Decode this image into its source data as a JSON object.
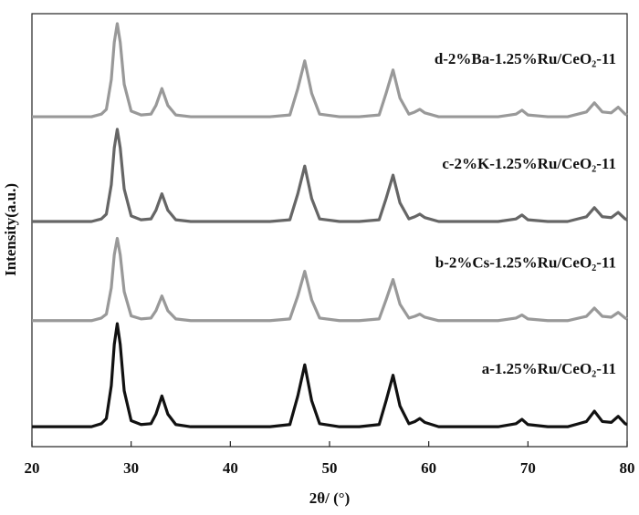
{
  "chart_data": {
    "type": "line",
    "xlabel": "2θ/ (°)",
    "ylabel": "Intensity(a.u.)",
    "xlim": [
      20,
      80
    ],
    "xticks": [
      20,
      30,
      40,
      50,
      60,
      70,
      80
    ],
    "ylim": [
      0,
      100
    ],
    "x": [
      20,
      22,
      24,
      26,
      27,
      27.5,
      28,
      28.3,
      28.6,
      28.9,
      29.3,
      30,
      31,
      32,
      32.5,
      33.1,
      33.7,
      34.5,
      36,
      38,
      40,
      42,
      44,
      46,
      46.8,
      47.5,
      48.2,
      49,
      51,
      53,
      55,
      55.7,
      56.4,
      57.1,
      58,
      58.6,
      59.1,
      59.6,
      61,
      63,
      65,
      67,
      68.8,
      69.4,
      70,
      72,
      74,
      75.9,
      76.7,
      77.5,
      78.4,
      79.1,
      79.8,
      80
    ],
    "series": [
      {
        "name": "a-1.25%Ru/CeO₂-11",
        "color": "#111111",
        "values": [
          4.6,
          4.6,
          4.6,
          4.6,
          5.3,
          6.5,
          14.1,
          23.6,
          28.4,
          23.6,
          12.9,
          6.0,
          5.1,
          5.3,
          7.5,
          11.7,
          7.5,
          5.1,
          4.6,
          4.6,
          4.6,
          4.6,
          4.6,
          5.1,
          11.7,
          18.9,
          10.6,
          5.3,
          4.6,
          4.6,
          5.1,
          10.6,
          16.5,
          9.4,
          5.3,
          5.8,
          6.5,
          5.6,
          4.6,
          4.6,
          4.6,
          4.6,
          5.3,
          6.3,
          5.1,
          4.6,
          4.6,
          5.8,
          8.2,
          5.8,
          5.6,
          7.0,
          5.3,
          5.1
        ]
      },
      {
        "name": "b-2%Cs-1.25%Ru/CeO₂-11",
        "color": "#999999",
        "values": [
          29.1,
          29.1,
          29.1,
          29.1,
          29.7,
          30.6,
          36.7,
          44.3,
          48.1,
          44.3,
          35.8,
          30.2,
          29.5,
          29.7,
          31.4,
          34.8,
          31.4,
          29.5,
          29.1,
          29.1,
          29.1,
          29.1,
          29.1,
          29.5,
          34.8,
          40.5,
          33.9,
          29.7,
          29.1,
          29.1,
          29.5,
          33.9,
          38.6,
          32.9,
          29.7,
          30.1,
          30.6,
          29.9,
          29.1,
          29.1,
          29.1,
          29.1,
          29.7,
          30.4,
          29.5,
          29.1,
          29.1,
          30.1,
          32.0,
          30.1,
          29.9,
          31.0,
          29.7,
          29.5
        ]
      },
      {
        "name": "c-2%K-1.25%Ru/CeO₂-11",
        "color": "#666666",
        "values": [
          52,
          52,
          52,
          52,
          52.6,
          53.7,
          60.5,
          69.0,
          73.3,
          69.0,
          59.5,
          53.3,
          52.4,
          52.6,
          54.6,
          58.4,
          54.6,
          52.4,
          52,
          52,
          52,
          52,
          52,
          52.4,
          58.4,
          64.8,
          57.3,
          52.6,
          52,
          52,
          52.4,
          57.3,
          62.7,
          56.3,
          52.6,
          53.1,
          53.7,
          52.9,
          52,
          52,
          52,
          52,
          52.6,
          53.5,
          52.4,
          52,
          52,
          53.1,
          55.2,
          53.1,
          52.9,
          54.1,
          52.6,
          52.4
        ]
      },
      {
        "name": "d-2%Ba-1.25%Ru/CeO₂-11",
        "color": "#999999",
        "values": [
          76.2,
          76.2,
          76.2,
          76.2,
          76.8,
          77.9,
          84.8,
          93.4,
          97.7,
          93.4,
          83.7,
          77.5,
          76.6,
          76.8,
          78.8,
          82.7,
          78.8,
          76.6,
          76.2,
          76.2,
          76.2,
          76.2,
          76.2,
          76.6,
          82.7,
          89.1,
          81.6,
          76.8,
          76.2,
          76.2,
          76.6,
          81.6,
          87.0,
          80.5,
          76.8,
          77.3,
          77.9,
          77.1,
          76.2,
          76.2,
          76.2,
          76.2,
          76.8,
          77.7,
          76.6,
          76.2,
          76.2,
          77.3,
          79.4,
          77.3,
          77.1,
          78.4,
          76.8,
          76.6
        ]
      }
    ]
  }
}
